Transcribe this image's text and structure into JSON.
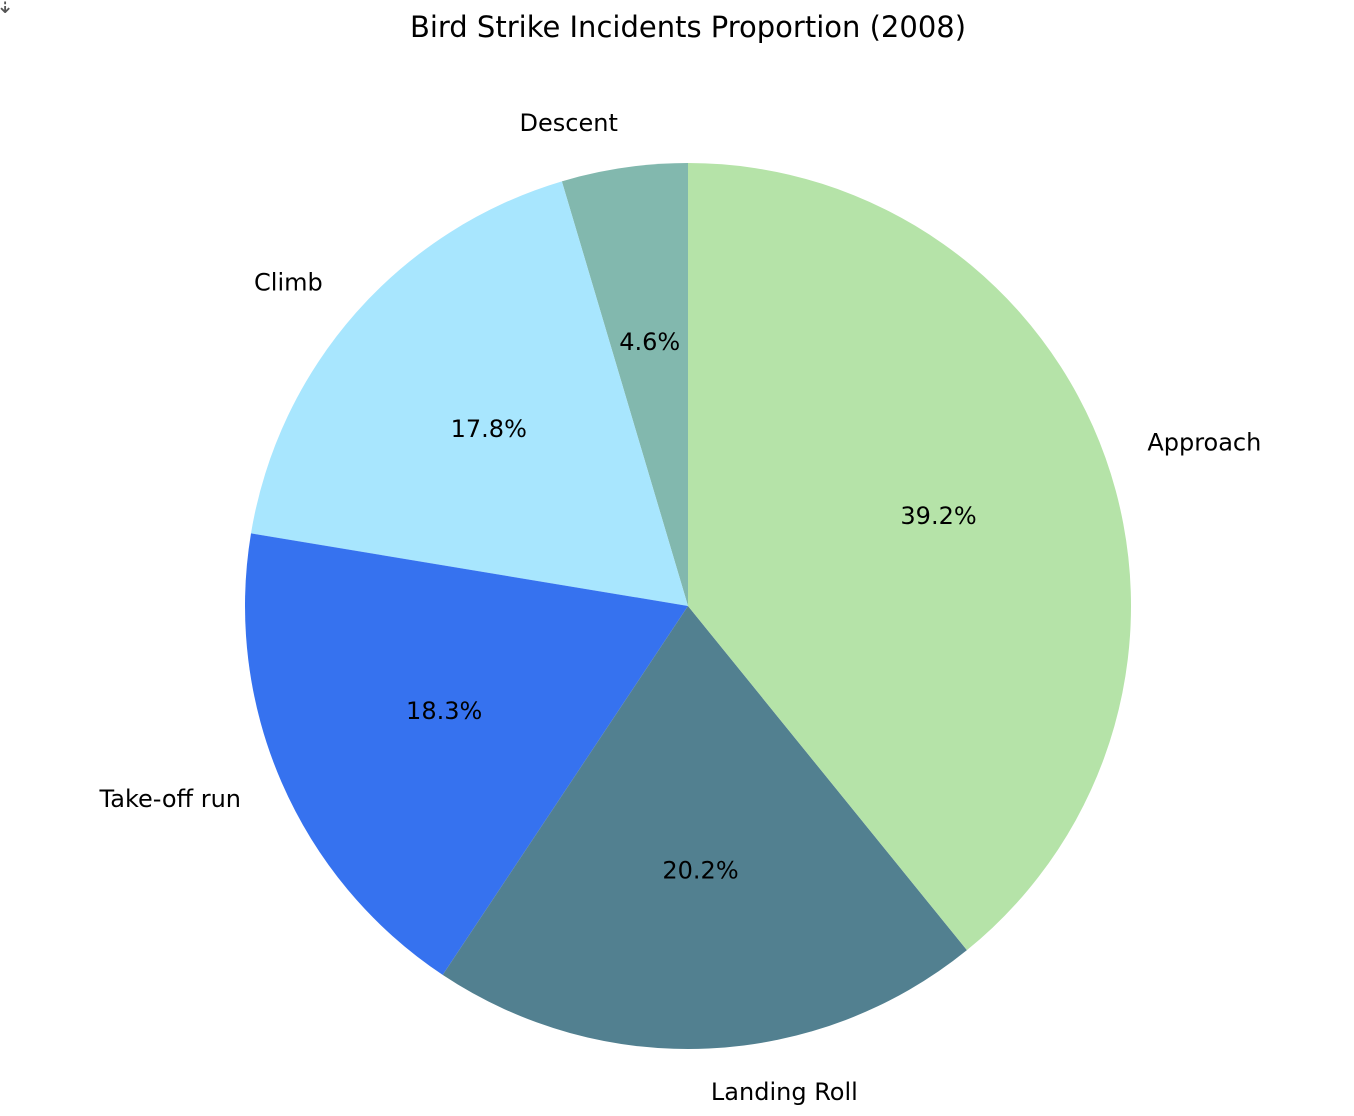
{
  "chart_data": {
    "type": "pie",
    "title": "Bird Strike Incidents Proportion (2008)",
    "start_angle_deg": 90,
    "direction": "counterclockwise",
    "slices": [
      {
        "label": "Descent",
        "value": 4.6,
        "pct_label": "4.6%",
        "color": "#82b8ae"
      },
      {
        "label": "Climb",
        "value": 17.8,
        "pct_label": "17.8%",
        "color": "#a8e6fe"
      },
      {
        "label": "Take-off run",
        "value": 18.3,
        "pct_label": "18.3%",
        "color": "#3672ef"
      },
      {
        "label": "Landing Roll",
        "value": 20.2,
        "pct_label": "20.2%",
        "color": "#528090"
      },
      {
        "label": "Approach",
        "value": 39.2,
        "pct_label": "39.2%",
        "color": "#b5e3a8"
      }
    ]
  }
}
